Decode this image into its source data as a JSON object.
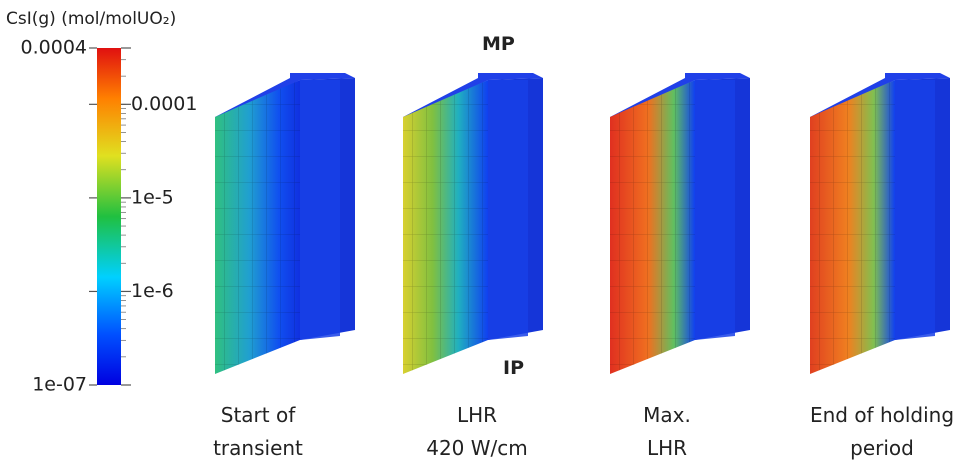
{
  "colorbar": {
    "title": "CsI(g) (mol/molUO₂)",
    "scale": "log",
    "range": [
      1e-07,
      0.0004
    ],
    "ticks": [
      0.0004,
      0.0001,
      {
        "value": 1e-05,
        "label": "1e-5"
      },
      {
        "value": 1e-06,
        "label": "1e-6"
      },
      {
        "value": 1e-07,
        "label": "1e-07"
      }
    ]
  },
  "markers": {
    "top": "MP",
    "bottom": "IP"
  },
  "panels": [
    {
      "label": [
        "Start of",
        "transient"
      ]
    },
    {
      "label": [
        "LHR",
        "420 W/cm"
      ]
    },
    {
      "label": [
        "Max.",
        "LHR"
      ]
    },
    {
      "label": [
        "End of holding",
        "period"
      ]
    }
  ]
}
